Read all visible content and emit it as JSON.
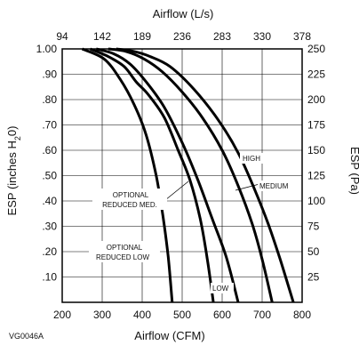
{
  "chart_data": {
    "type": "line",
    "figure_code": "VG0046A",
    "xlabel_bottom": "Airflow (CFM)",
    "xlabel_top": "Airflow (L/s)",
    "ylabel_left_main": "ESP (inches H",
    "ylabel_left_sub": "2",
    "ylabel_left_end": "0)",
    "ylabel_right": "ESP (Pa)",
    "x_range": [
      200,
      800
    ],
    "y_range": [
      0,
      1.0
    ],
    "x_ticks_bottom": [
      "200",
      "300",
      "400",
      "500",
      "600",
      "700",
      "800"
    ],
    "x_ticks_top": [
      "94",
      "142",
      "189",
      "236",
      "283",
      "330",
      "378"
    ],
    "y_ticks_left": [
      "1.00",
      ".90",
      ".80",
      ".70",
      ".60",
      ".50",
      ".40",
      ".30",
      ".20",
      ".10"
    ],
    "y_ticks_right": [
      "250",
      "225",
      "200",
      "175",
      "150",
      "125",
      "100",
      "75",
      "50",
      "25"
    ],
    "grid": true,
    "series": [
      {
        "name": "OPTIONAL REDUCED LOW",
        "points": [
          [
            250,
            1.0
          ],
          [
            305,
            0.96
          ],
          [
            345,
            0.88
          ],
          [
            380,
            0.78
          ],
          [
            410,
            0.66
          ],
          [
            435,
            0.5
          ],
          [
            452,
            0.34
          ],
          [
            465,
            0.18
          ],
          [
            475,
            0.0
          ]
        ]
      },
      {
        "name": "LOW",
        "points": [
          [
            270,
            1.0
          ],
          [
            315,
            0.97
          ],
          [
            355,
            0.93
          ],
          [
            385,
            0.87
          ],
          [
            415,
            0.82
          ],
          [
            455,
            0.73
          ],
          [
            490,
            0.6
          ],
          [
            520,
            0.48
          ],
          [
            545,
            0.33
          ],
          [
            563,
            0.17
          ],
          [
            578,
            0.0
          ]
        ]
      },
      {
        "name": "OPTIONAL REDUCED MED.",
        "points": [
          [
            285,
            1.0
          ],
          [
            330,
            0.98
          ],
          [
            370,
            0.94
          ],
          [
            410,
            0.87
          ],
          [
            455,
            0.77
          ],
          [
            500,
            0.63
          ],
          [
            540,
            0.48
          ],
          [
            575,
            0.33
          ],
          [
            610,
            0.18
          ],
          [
            640,
            0.0
          ]
        ]
      },
      {
        "name": "MEDIUM",
        "points": [
          [
            315,
            1.0
          ],
          [
            360,
            0.99
          ],
          [
            405,
            0.96
          ],
          [
            450,
            0.91
          ],
          [
            500,
            0.83
          ],
          [
            550,
            0.73
          ],
          [
            600,
            0.6
          ],
          [
            640,
            0.46
          ],
          [
            675,
            0.31
          ],
          [
            700,
            0.17
          ],
          [
            725,
            0.0
          ]
        ]
      },
      {
        "name": "HIGH",
        "points": [
          [
            335,
            1.0
          ],
          [
            380,
            0.99
          ],
          [
            420,
            0.97
          ],
          [
            470,
            0.93
          ],
          [
            530,
            0.84
          ],
          [
            590,
            0.72
          ],
          [
            640,
            0.59
          ],
          [
            680,
            0.45
          ],
          [
            715,
            0.31
          ],
          [
            745,
            0.17
          ],
          [
            778,
            0.0
          ]
        ]
      }
    ],
    "annotations": {
      "high": "HIGH",
      "medium": "MEDIUM",
      "low": "LOW",
      "opt_med_1": "OPTIONAL",
      "opt_med_2": "REDUCED MED.",
      "opt_low_1": "OPTIONAL",
      "opt_low_2": "REDUCED LOW"
    }
  }
}
